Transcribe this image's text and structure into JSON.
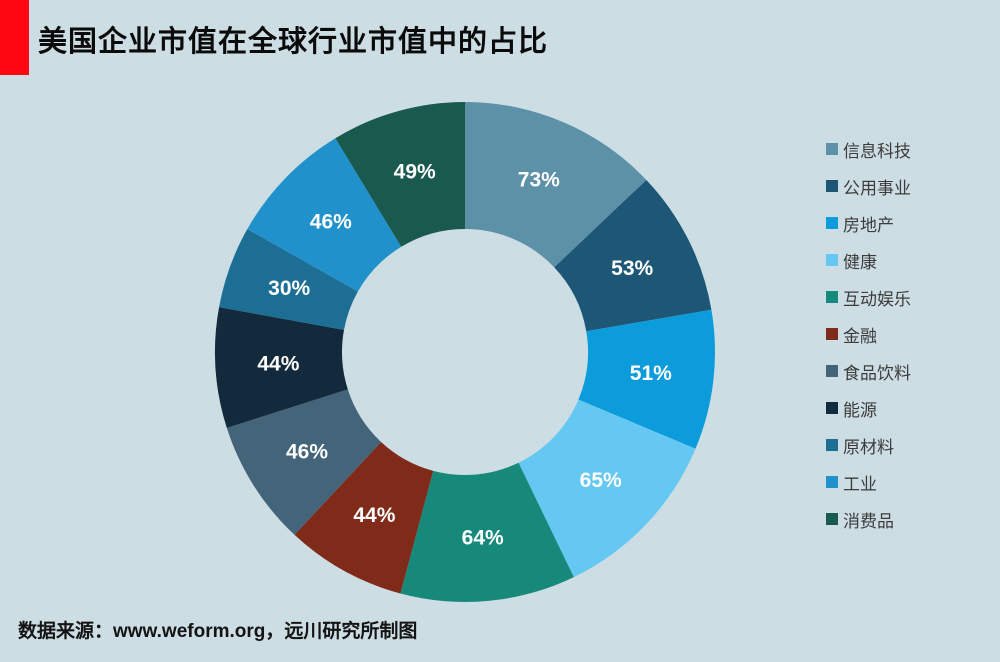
{
  "page": {
    "background_color": "#cddde4",
    "accent_red": "#fe0712"
  },
  "header": {
    "title": "美国企业市值在全球行业市值中的占比"
  },
  "footer": {
    "source_text": "数据来源：www.weform.org，远川研究所制图"
  },
  "chart_data": {
    "type": "pie",
    "subtype": "donut",
    "title": "美国企业市值在全球行业市值中的占比",
    "direction": "clockwise",
    "start_angle": "12-o-clock",
    "inner_radius_ratio": 0.49,
    "angles_proportional_to_values": true,
    "legend_position": "right",
    "categories": [
      "信息科技",
      "公用事业",
      "房地产",
      "健康",
      "互动娱乐",
      "金融",
      "食品饮料",
      "能源",
      "原材料",
      "工业",
      "消费品"
    ],
    "values": [
      73,
      53,
      51,
      65,
      64,
      44,
      46,
      44,
      30,
      46,
      49
    ],
    "labels": [
      "73%",
      "53%",
      "51%",
      "65%",
      "64%",
      "44%",
      "46%",
      "44%",
      "30%",
      "46%",
      "49%"
    ],
    "colors": [
      "#5d91a8",
      "#1d5775",
      "#0d9cdb",
      "#64c8f2",
      "#17897b",
      "#802a1a",
      "#44647a",
      "#13293c",
      "#1d6e94",
      "#2191cc",
      "#1a594e"
    ],
    "value_label_color": "#ffffff"
  }
}
